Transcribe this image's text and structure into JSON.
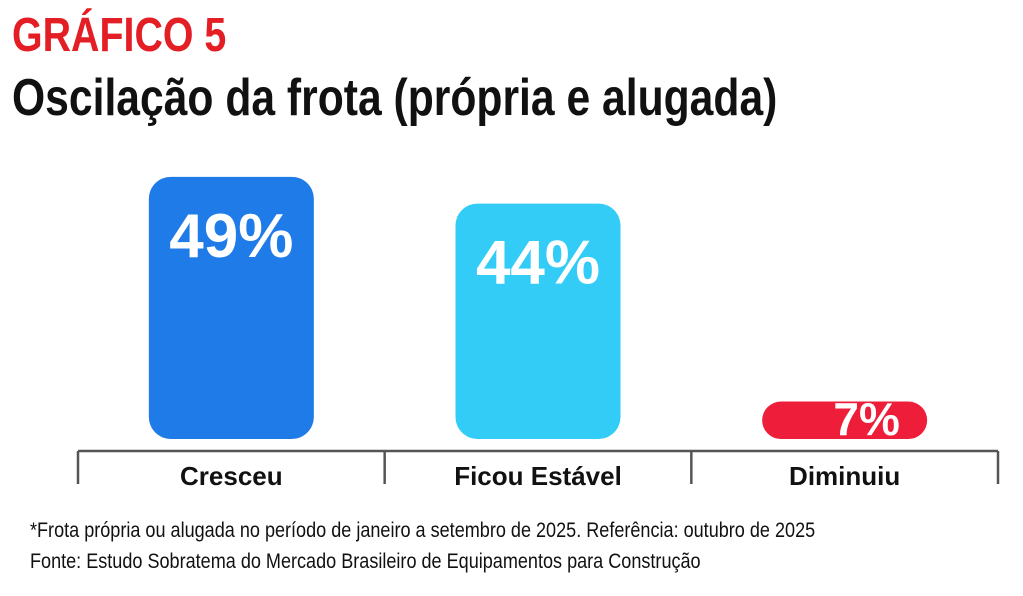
{
  "chart_label": "GRÁFICO 5",
  "chart_data": {
    "type": "bar",
    "title": "Oscilação da frota (própria e alugada)",
    "categories": [
      "Cresceu",
      "Ficou Estável",
      "Diminuiu"
    ],
    "values": [
      49,
      44,
      7
    ],
    "value_labels": [
      "49%",
      "44%",
      "7%"
    ],
    "unit": "%",
    "colors": [
      "#1E7BE8",
      "#33CCF7",
      "#EE1D3A"
    ],
    "label_color": "#E31E24",
    "grid": false
  },
  "footnote": "*Frota própria ou alugada no período de janeiro a setembro de 2025. Referência: outubro de 2025",
  "source": "Fonte: Estudo Sobratema do Mercado Brasileiro de Equipamentos para Construção"
}
